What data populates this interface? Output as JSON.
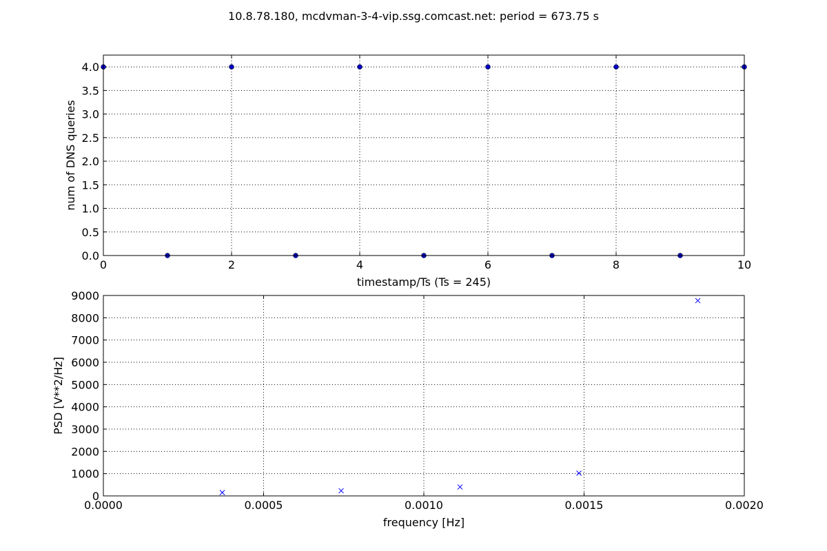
{
  "figure_title": "10.8.78.180, mcdvman-3-4-vip.ssg.comcast.net: period = 673.75 s",
  "chart_data": [
    {
      "type": "scatter",
      "xlabel": "timestamp/Ts (Ts = 245)",
      "ylabel": "num of DNS queries",
      "xlim": [
        0,
        10
      ],
      "ylim": [
        0,
        4.25
      ],
      "xticks": [
        0,
        2,
        4,
        6,
        8,
        10
      ],
      "xtick_labels": [
        "0",
        "2",
        "4",
        "6",
        "8",
        "10"
      ],
      "yticks": [
        0,
        0.5,
        1,
        1.5,
        2,
        2.5,
        3,
        3.5,
        4
      ],
      "ytick_labels": [
        "0.0",
        "0.5",
        "1.0",
        "1.5",
        "2.0",
        "2.5",
        "3.0",
        "3.5",
        "4.0"
      ],
      "grid": true,
      "marker": "circle",
      "color": "#0000bf",
      "series": [
        {
          "x": [
            0,
            1,
            2,
            3,
            4,
            5,
            6,
            7,
            8,
            9,
            10
          ],
          "y": [
            4,
            0,
            4,
            0,
            4,
            0,
            4,
            0,
            4,
            0,
            4
          ]
        }
      ]
    },
    {
      "type": "scatter",
      "xlabel": "frequency [Hz]",
      "ylabel": "PSD [V**2/Hz]",
      "xlim": [
        0,
        0.002
      ],
      "ylim": [
        0,
        9000
      ],
      "xticks": [
        0,
        0.0005,
        0.001,
        0.0015,
        0.002
      ],
      "xtick_labels": [
        "0.0000",
        "0.0005",
        "0.0010",
        "0.0015",
        "0.0020"
      ],
      "yticks": [
        0,
        1000,
        2000,
        3000,
        4000,
        5000,
        6000,
        7000,
        8000,
        9000
      ],
      "ytick_labels": [
        "0",
        "1000",
        "2000",
        "3000",
        "4000",
        "5000",
        "6000",
        "7000",
        "8000",
        "9000"
      ],
      "grid": true,
      "marker": "x",
      "color": "#0000ff",
      "series": [
        {
          "x": [
            0.000371,
            0.000742,
            0.001113,
            0.001484,
            0.001855
          ],
          "y": [
            150,
            230,
            400,
            1020,
            8770
          ]
        }
      ]
    }
  ]
}
